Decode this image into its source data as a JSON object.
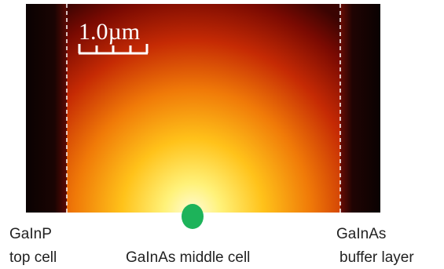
{
  "scale_bar": {
    "label": "1.0µm"
  },
  "regions": [
    {
      "lines": [
        "GaInP",
        "top cell"
      ]
    },
    {
      "lines": [
        "GaInAs middle cell"
      ]
    },
    {
      "lines": [
        "GaInAs",
        "buffer layer"
      ]
    }
  ]
}
